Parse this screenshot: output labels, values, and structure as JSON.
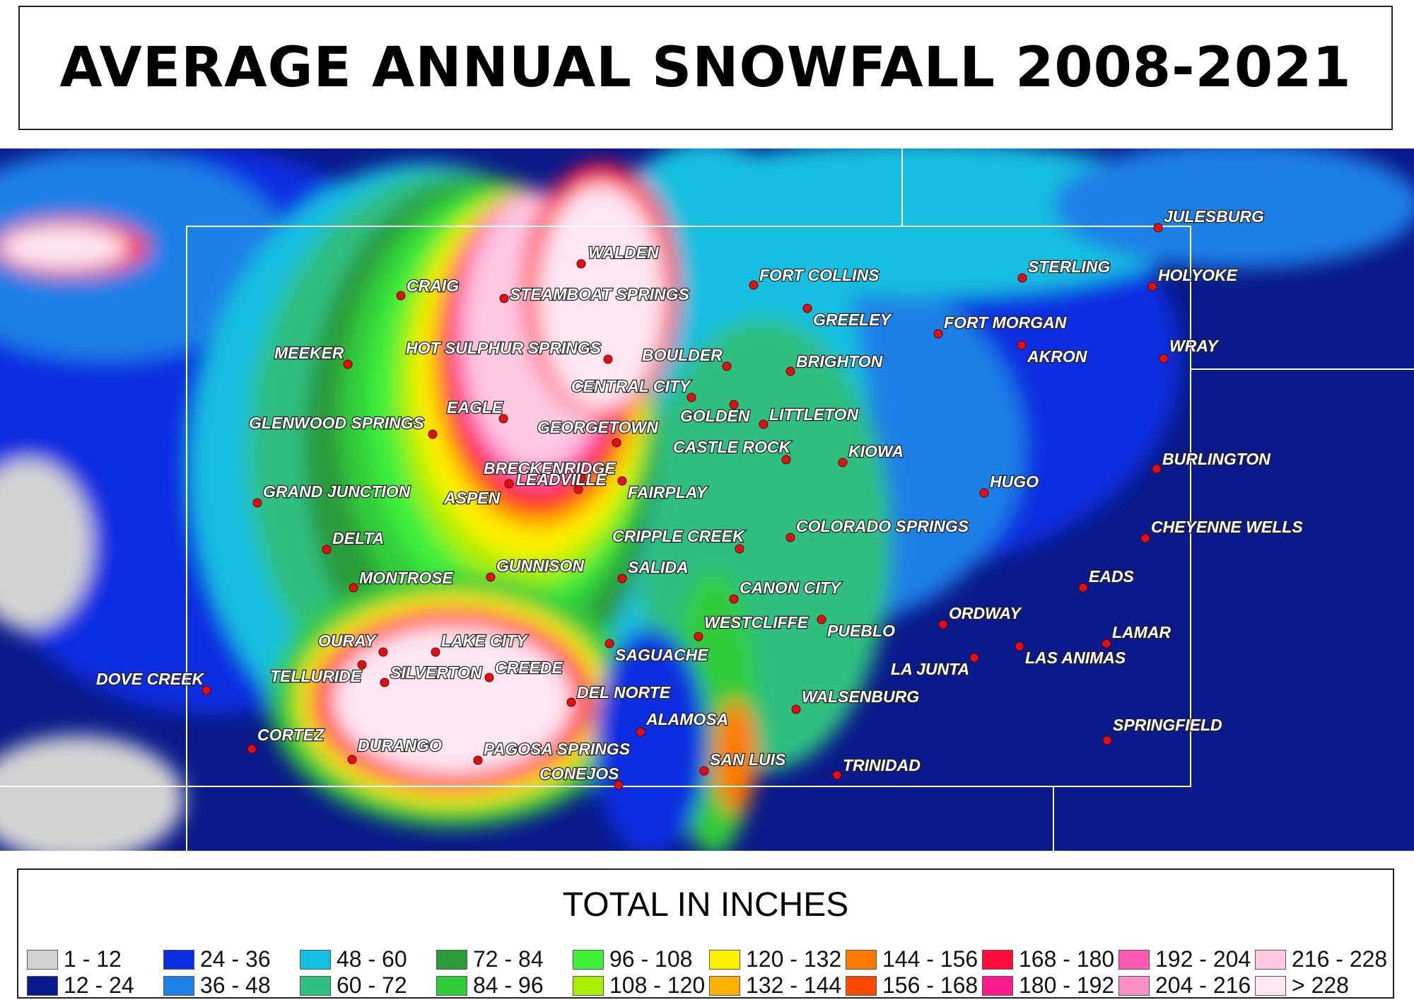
{
  "title": "AVERAGE ANNUAL SNOWFALL 2008-2021",
  "legend": {
    "title": "TOTAL IN INCHES",
    "items": [
      {
        "label": "1 - 12",
        "color": "#d3d3d3"
      },
      {
        "label": "12 - 24",
        "color": "#0a1a8a"
      },
      {
        "label": "24 - 36",
        "color": "#0a2ee0"
      },
      {
        "label": "36 - 48",
        "color": "#1e7fe6"
      },
      {
        "label": "48 - 60",
        "color": "#13bfe0"
      },
      {
        "label": "60 - 72",
        "color": "#2fbf80"
      },
      {
        "label": "72 - 84",
        "color": "#2a9a3a"
      },
      {
        "label": "84 - 96",
        "color": "#30cc3a"
      },
      {
        "label": "96 - 108",
        "color": "#3ef03a"
      },
      {
        "label": "108 - 120",
        "color": "#a8f000"
      },
      {
        "label": "120 - 132",
        "color": "#fff200"
      },
      {
        "label": "132 - 144",
        "color": "#ffb000"
      },
      {
        "label": "144 - 156",
        "color": "#ff7a00"
      },
      {
        "label": "156 - 168",
        "color": "#ff4a00"
      },
      {
        "label": "168 - 180",
        "color": "#ff0a3a"
      },
      {
        "label": "180 - 192",
        "color": "#ff1a8a"
      },
      {
        "label": "192 - 204",
        "color": "#ff5ab0"
      },
      {
        "label": "204 - 216",
        "color": "#ff90c8"
      },
      {
        "label": "216 - 228",
        "color": "#ffc8e2"
      },
      {
        "label": "> 228",
        "color": "#fde6f2"
      }
    ]
  },
  "cities": [
    "JULESBURG",
    "WALDEN",
    "FORT COLLINS",
    "STERLING",
    "HOLYOKE",
    "CRAIG",
    "STEAMBOAT SPRINGS",
    "GREELEY",
    "FORT MORGAN",
    "MEEKER",
    "HOT SULPHUR SPRINGS",
    "BOULDER",
    "AKRON",
    "WRAY",
    "BRIGHTON",
    "CENTRAL CITY",
    "EAGLE",
    "GOLDEN",
    "LITTLETON",
    "GLENWOOD SPRINGS",
    "GEORGETOWN",
    "CASTLE ROCK",
    "KIOWA",
    "BRECKENRIDGE",
    "BURLINGTON",
    "HUGO",
    "GRAND JUNCTION",
    "ASPEN",
    "LEADVILLE",
    "FAIRPLAY",
    "COLORADO SPRINGS",
    "CHEYENNE WELLS",
    "CRIPPLE CREEK",
    "DELTA",
    "GUNNISON",
    "SALIDA",
    "MONTROSE",
    "EADS",
    "CANON CITY",
    "ORDWAY",
    "WESTCLIFFE",
    "PUEBLO",
    "LAMAR",
    "OURAY",
    "LAKE CITY",
    "SAGUACHE",
    "LAS ANIMAS",
    "LA JUNTA",
    "TELLURIDE",
    "SILVERTON",
    "CREEDE",
    "DOVE CREEK",
    "DEL NORTE",
    "WALSENBURG",
    "ALAMOSA",
    "SPRINGFIELD",
    "CORTEZ",
    "DURANGO",
    "PAGOSA SPRINGS",
    "SAN LUIS",
    "TRINIDAD",
    "CONEJOS"
  ]
}
